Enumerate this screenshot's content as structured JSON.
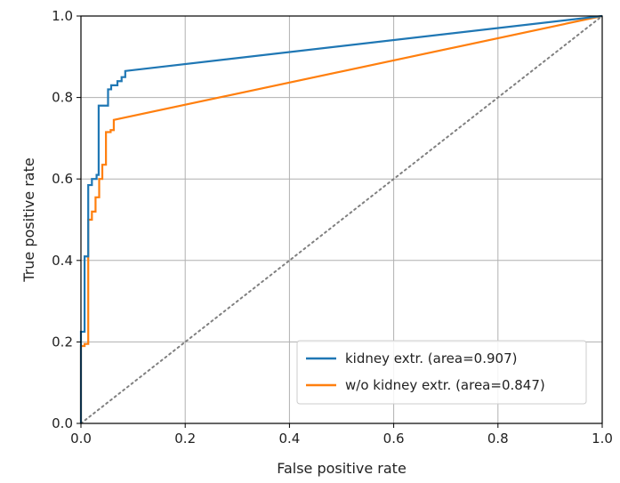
{
  "chart_data": {
    "type": "line",
    "title": "",
    "xlabel": "False positive rate",
    "ylabel": "True positive rate",
    "xlim": [
      0.0,
      1.0
    ],
    "ylim": [
      0.0,
      1.0
    ],
    "xticks": [
      "0.0",
      "0.2",
      "0.4",
      "0.6",
      "0.8",
      "1.0"
    ],
    "yticks": [
      "0.0",
      "0.2",
      "0.4",
      "0.6",
      "0.8",
      "1.0"
    ],
    "grid": true,
    "legend_position": "bottom-right",
    "series": [
      {
        "name": "kidney extr. (area=0.907)",
        "color": "#1f77b4",
        "x": [
          0.0,
          0.0,
          0.007,
          0.007,
          0.014,
          0.014,
          0.021,
          0.021,
          0.03,
          0.03,
          0.034,
          0.034,
          0.052,
          0.052,
          0.058,
          0.058,
          0.07,
          0.07,
          0.078,
          0.078,
          0.085,
          0.085,
          1.0
        ],
        "y": [
          0.0,
          0.225,
          0.225,
          0.41,
          0.41,
          0.585,
          0.585,
          0.6,
          0.6,
          0.61,
          0.61,
          0.78,
          0.78,
          0.82,
          0.82,
          0.83,
          0.83,
          0.84,
          0.84,
          0.85,
          0.85,
          0.865,
          1.0
        ]
      },
      {
        "name": "w/o kidney extr. (area=0.847)",
        "color": "#ff7f0e",
        "x": [
          0.0,
          0.0,
          0.007,
          0.007,
          0.014,
          0.014,
          0.021,
          0.021,
          0.028,
          0.028,
          0.035,
          0.035,
          0.041,
          0.041,
          0.048,
          0.048,
          0.057,
          0.057,
          0.063,
          0.063,
          1.0
        ],
        "y": [
          0.0,
          0.19,
          0.19,
          0.195,
          0.195,
          0.5,
          0.5,
          0.52,
          0.52,
          0.555,
          0.555,
          0.6,
          0.6,
          0.635,
          0.635,
          0.715,
          0.715,
          0.72,
          0.72,
          0.745,
          1.0
        ]
      }
    ],
    "reference_line": {
      "style": "dotted",
      "color": "#808080",
      "x": [
        0.0,
        1.0
      ],
      "y": [
        0.0,
        1.0
      ]
    }
  }
}
